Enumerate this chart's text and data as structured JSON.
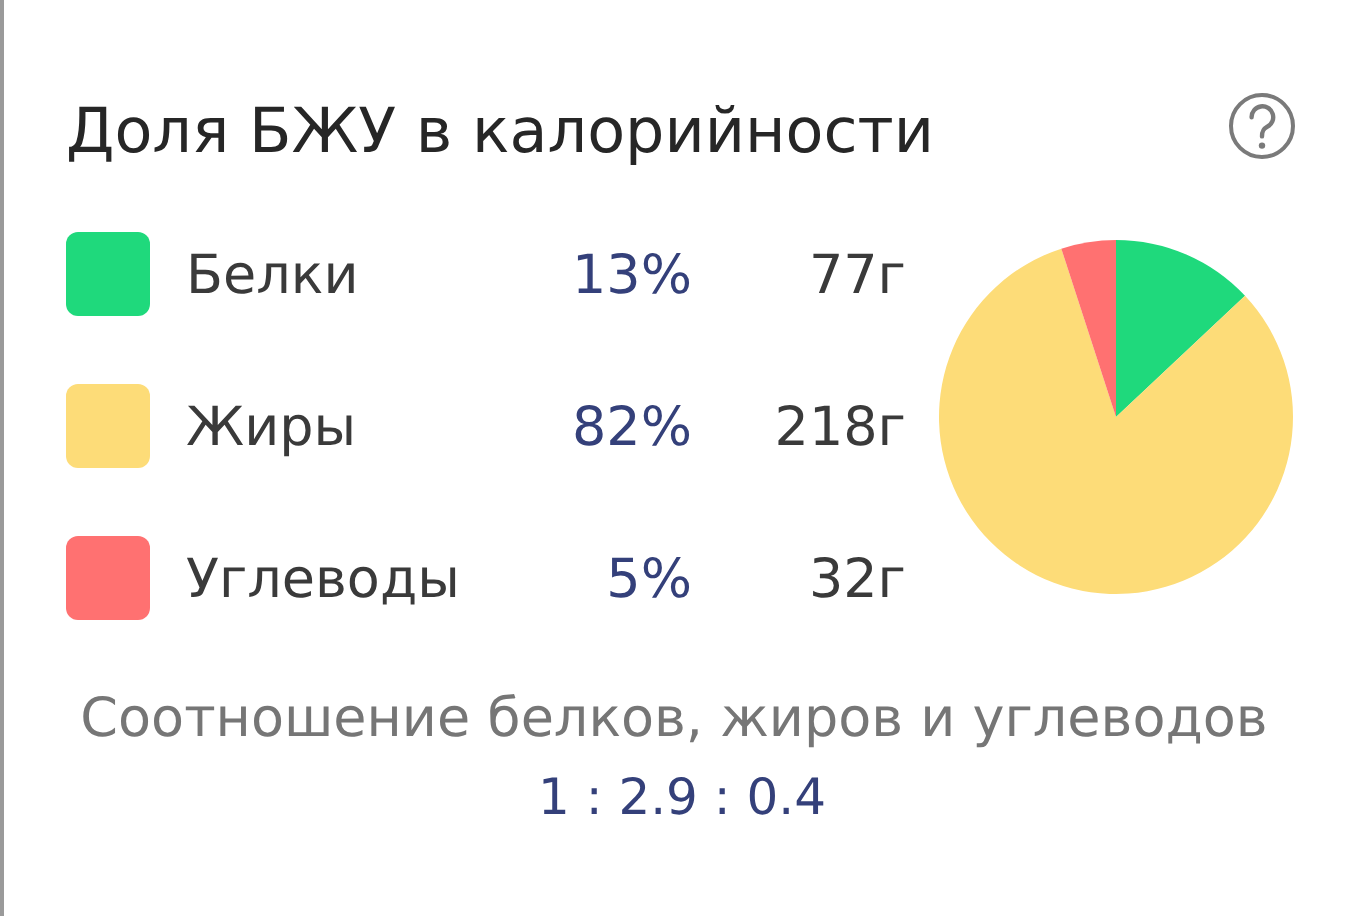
{
  "chart_data": {
    "type": "pie",
    "title": "Доля БЖУ в калорийности",
    "categories": [
      "Белки",
      "Жиры",
      "Углеводы"
    ],
    "values": [
      13,
      82,
      5
    ],
    "colors": [
      "#1fd97c",
      "#fddc78",
      "#ff7171"
    ],
    "value_labels": [
      "13%",
      "82%",
      "5%"
    ],
    "legend": "left",
    "annotations": [
      {
        "text": "77г",
        "x": "Белки"
      },
      {
        "text": "218г",
        "x": "Жиры"
      },
      {
        "text": "32г",
        "x": "Углеводы"
      },
      "Соотношение белков, жиров и углеводов",
      "1 : 2.9 : 0.4"
    ]
  }
}
